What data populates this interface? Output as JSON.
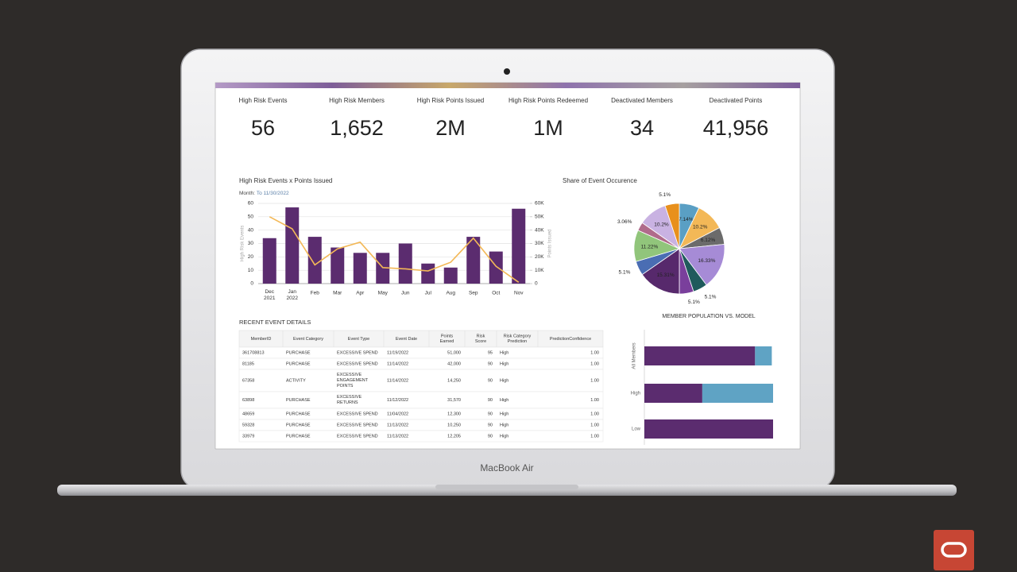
{
  "device_label": "MacBook Air",
  "kpis": [
    {
      "label": "High Risk Events",
      "value": "56"
    },
    {
      "label": "High Risk Members",
      "value": "1,652"
    },
    {
      "label": "High Risk Points Issued",
      "value": "2M"
    },
    {
      "label": "High Risk Points Redeemed",
      "value": "1M"
    },
    {
      "label": "Deactivated Members",
      "value": "34"
    },
    {
      "label": "Deactivated Points",
      "value": "41,956"
    }
  ],
  "chart_data": [
    {
      "type": "bar_line",
      "title": "High Risk Events x Points Issued",
      "filter_label": "Month:",
      "filter_value": "To 11/30/2022",
      "y_label": "High Risk Events",
      "y2_label": "Points Issued",
      "categories": [
        "Dec 2021",
        "Jan 2022",
        "Feb",
        "Mar",
        "Apr",
        "May",
        "Jun",
        "Jul",
        "Aug",
        "Sep",
        "Oct",
        "Nov"
      ],
      "series": [
        {
          "type": "bar",
          "color": "#5b2c6f",
          "values": [
            34,
            57,
            35,
            27,
            23,
            23,
            30,
            15,
            12,
            35,
            24,
            56
          ]
        },
        {
          "type": "line",
          "axis": "y2",
          "color": "#f3b857",
          "values": [
            50000,
            41000,
            14000,
            26000,
            31000,
            12000,
            11000,
            9500,
            16000,
            34000,
            13000,
            1000
          ]
        }
      ],
      "ylim": [
        0,
        60
      ],
      "yticks": [
        0,
        10,
        20,
        30,
        40,
        50,
        60
      ],
      "y2lim": [
        0,
        60000
      ],
      "y2ticks": [
        0,
        {
          "value": 10000,
          "label": "10K"
        },
        {
          "value": 20000,
          "label": "20K"
        },
        {
          "value": 30000,
          "label": "30K"
        },
        {
          "value": 40000,
          "label": "40K"
        },
        {
          "value": 50000,
          "label": "50K"
        },
        {
          "value": 60000,
          "label": "60K"
        }
      ],
      "grid": true
    },
    {
      "type": "pie",
      "title": "Share of Event Occurence",
      "values": [
        7.14,
        10.2,
        6.12,
        16.33,
        5.1,
        5.1,
        15.31,
        5.1,
        11.22,
        3.06,
        10.2,
        5.1
      ],
      "value_labels": [
        "7.14%",
        "10.2%",
        "6.12%",
        "16.33%",
        "5.1%",
        "5.1%",
        "15.31%",
        "5.1%",
        "11.22%",
        "3.06%",
        "10.2%",
        "5.1%"
      ],
      "colors": [
        "#5a9fc4",
        "#f3b857",
        "#6b6b6b",
        "#a68bd6",
        "#1f5a5c",
        "#7a3f9c",
        "#57296c",
        "#4a6db3",
        "#91c57b",
        "#b06b8b",
        "#c9b2e2",
        "#e8901c"
      ]
    },
    {
      "type": "stacked_hbar",
      "title": "MEMBER POPULATION VS. MODEL",
      "categories": [
        "All Members",
        "High",
        "Low"
      ],
      "series": [
        {
          "color": "#5b2c6f",
          "values": [
            86,
            45,
            100
          ]
        },
        {
          "color": "#5fa3c4",
          "values": [
            13,
            55,
            0
          ]
        }
      ],
      "xlim": [
        0,
        100
      ]
    }
  ],
  "table": {
    "title": "RECENT EVENT DETAILS",
    "columns": [
      "MemberID",
      "Event Category",
      "Event Type",
      "Event Date",
      "Points Earned",
      "Risk Score",
      "Risk Category Prediction",
      "PredictionConfidence"
    ],
    "rows": [
      [
        "361708813",
        "PURCHASE",
        "EXCESSIVE SPEND",
        "11/19/2022",
        "51,000",
        "95",
        "High",
        "1.00"
      ],
      [
        "81185",
        "PURCHASE",
        "EXCESSIVE SPEND",
        "11/14/2022",
        "42,000",
        "90",
        "High",
        "1.00"
      ],
      [
        "67358",
        "ACTIVITY",
        "EXCESSIVE ENGAGEMENT POINTS",
        "11/14/2022",
        "14,250",
        "90",
        "High",
        "1.00"
      ],
      [
        "63898",
        "PURCHASE",
        "EXCESSIVE RETURNS",
        "11/12/2022",
        "31,570",
        "90",
        "High",
        "1.00"
      ],
      [
        "48659",
        "PURCHASE",
        "EXCESSIVE SPEND",
        "11/04/2022",
        "12,300",
        "90",
        "High",
        "1.00"
      ],
      [
        "59328",
        "PURCHASE",
        "EXCESSIVE SPEND",
        "11/13/2022",
        "10,250",
        "90",
        "High",
        "1.00"
      ],
      [
        "33979",
        "PURCHASE",
        "EXCESSIVE SPEND",
        "11/13/2022",
        "12,205",
        "90",
        "High",
        "1.00"
      ]
    ]
  }
}
